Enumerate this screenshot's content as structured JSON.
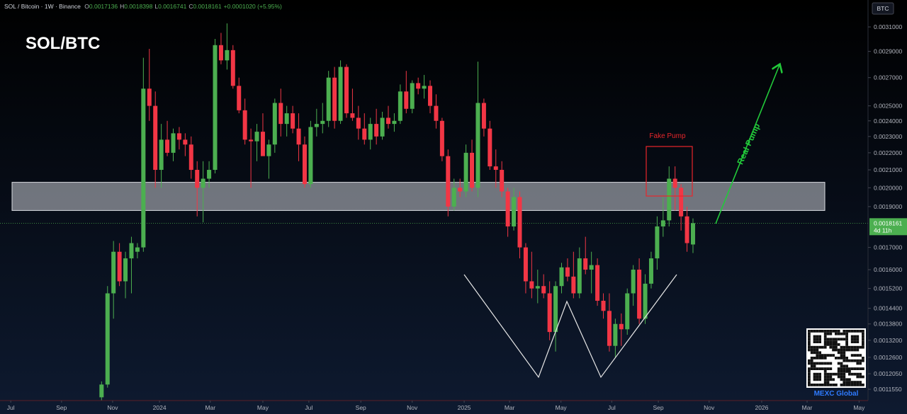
{
  "chart_data": {
    "type": "candlestick",
    "symbol": "SOL / Bitcoin · 1W · Binance",
    "header_values": [
      {
        "key": "O",
        "text": "0.0017136"
      },
      {
        "key": "H",
        "text": "0.0018398"
      },
      {
        "key": "L",
        "text": "0.0016741"
      },
      {
        "key": "C",
        "text": "0.0018161"
      }
    ],
    "change": "+0.0001020 (+5.95%)",
    "title": "SOL/BTC",
    "currency": "BTC",
    "annotations": [
      "Fake Pump",
      "Real Pump"
    ],
    "brand": "MEXC Global",
    "up_color": "#4caf50",
    "down_color": "#f23645",
    "log_scale": true,
    "ylim": [
      0.00112,
      0.003336
    ],
    "yticks": [
      {
        "value": 0.0031,
        "label": "0.0031000"
      },
      {
        "value": 0.0029,
        "label": "0.0029000"
      },
      {
        "value": 0.0027,
        "label": "0.0027000"
      },
      {
        "value": 0.0025,
        "label": "0.0025000"
      },
      {
        "value": 0.0024,
        "label": "0.0024000"
      },
      {
        "value": 0.0023,
        "label": "0.0023000"
      },
      {
        "value": 0.0022,
        "label": "0.0022000"
      },
      {
        "value": 0.0021,
        "label": "0.0021000"
      },
      {
        "value": 0.002,
        "label": "0.0020000"
      },
      {
        "value": 0.0019,
        "label": "0.0019000"
      },
      {
        "value": 0.0017,
        "label": "0.0017000"
      },
      {
        "value": 0.0016,
        "label": "0.0016000"
      },
      {
        "value": 0.00152,
        "label": "0.0015200"
      },
      {
        "value": 0.00144,
        "label": "0.0014400"
      },
      {
        "value": 0.00138,
        "label": "0.0013800"
      },
      {
        "value": 0.00132,
        "label": "0.0013200"
      },
      {
        "value": 0.00126,
        "label": "0.0012600"
      },
      {
        "value": 0.001205,
        "label": "0.0012050"
      },
      {
        "value": 0.001155,
        "label": "0.0011550"
      }
    ],
    "xlim": [
      -17.0,
      128.3
    ],
    "xticks": [
      {
        "value": -15.2,
        "label": "Jul"
      },
      {
        "value": -6.7,
        "label": "Sep"
      },
      {
        "value": 1.85,
        "label": "Nov"
      },
      {
        "value": 9.7,
        "label": "2024"
      },
      {
        "value": 18.2,
        "label": "Mar"
      },
      {
        "value": 27.0,
        "label": "May"
      },
      {
        "value": 34.7,
        "label": "Jul"
      },
      {
        "value": 43.4,
        "label": "Sep"
      },
      {
        "value": 52.0,
        "label": "Nov"
      },
      {
        "value": 60.7,
        "label": "2025"
      },
      {
        "value": 68.3,
        "label": "Mar"
      },
      {
        "value": 76.9,
        "label": "May"
      },
      {
        "value": 85.4,
        "label": "Jul"
      },
      {
        "value": 93.2,
        "label": "Sep"
      },
      {
        "value": 101.7,
        "label": "Nov"
      },
      {
        "value": 110.5,
        "label": "2026"
      },
      {
        "value": 118.1,
        "label": "Mar"
      },
      {
        "value": 126.8,
        "label": "May"
      }
    ],
    "zone": {
      "low": 0.00188,
      "high": 0.00203
    },
    "last_price": {
      "value": 0.0018161,
      "label": "0.0018161"
    },
    "countdown": "4d 11h",
    "open": [
      0.00113,
      0.00117,
      0.0015,
      0.00168,
      0.00155,
      0.00165,
      0.00168,
      0.0017,
      0.00262,
      0.0025,
      0.0021,
      0.00228,
      0.0022,
      0.00232,
      0.00228,
      0.00225,
      0.0021,
      0.002,
      0.00205,
      0.0021,
      0.00295,
      0.00283,
      0.00291,
      0.00264,
      0.00247,
      0.00228,
      0.00227,
      0.00233,
      0.00218,
      0.00225,
      0.00252,
      0.00238,
      0.00245,
      0.00235,
      0.00225,
      0.00202,
      0.00236,
      0.00238,
      0.0024,
      0.0027,
      0.0024,
      0.00278,
      0.00245,
      0.00242,
      0.00235,
      0.00228,
      0.00238,
      0.0023,
      0.00242,
      0.00238,
      0.0024,
      0.0026,
      0.00248,
      0.00266,
      0.00262,
      0.00264,
      0.0025,
      0.0024,
      0.00218,
      0.0019,
      0.002,
      0.00198,
      0.0022,
      0.002,
      0.00252,
      0.00235,
      0.00212,
      0.0021,
      0.00198,
      0.0018,
      0.00195,
      0.0017,
      0.00155,
      0.00152,
      0.00153,
      0.0015,
      0.00135,
      0.00153,
      0.00161,
      0.00157,
      0.0015,
      0.00165,
      0.0016,
      0.00162,
      0.00147,
      0.00143,
      0.0013,
      0.00138,
      0.00136,
      0.0015,
      0.0016,
      0.0014,
      0.00154,
      0.00165,
      0.0018,
      0.00183,
      0.00205,
      0.002,
      0.00185,
      0.0017136
    ],
    "high": [
      0.00118,
      0.00153,
      0.00173,
      0.00172,
      0.00168,
      0.00175,
      0.00172,
      0.00285,
      0.00292,
      0.0026,
      0.00238,
      0.0024,
      0.00235,
      0.00236,
      0.00232,
      0.0023,
      0.00215,
      0.00215,
      0.00215,
      0.003,
      0.00305,
      0.00313,
      0.00295,
      0.0027,
      0.00255,
      0.00235,
      0.00238,
      0.00245,
      0.00228,
      0.00255,
      0.00262,
      0.0025,
      0.0025,
      0.00245,
      0.0023,
      0.0024,
      0.00248,
      0.00252,
      0.00275,
      0.00278,
      0.00283,
      0.0028,
      0.00262,
      0.0025,
      0.00245,
      0.00242,
      0.00248,
      0.00246,
      0.0025,
      0.00245,
      0.00265,
      0.00275,
      0.00268,
      0.0027,
      0.00272,
      0.00268,
      0.00258,
      0.00242,
      0.00222,
      0.00205,
      0.00205,
      0.00225,
      0.00228,
      0.00282,
      0.00255,
      0.0024,
      0.00222,
      0.00215,
      0.002,
      0.002,
      0.00198,
      0.00172,
      0.00168,
      0.0016,
      0.00158,
      0.00155,
      0.00155,
      0.00163,
      0.00165,
      0.00168,
      0.0017,
      0.00175,
      0.00168,
      0.00165,
      0.0015,
      0.0015,
      0.0014,
      0.00142,
      0.00152,
      0.00162,
      0.00165,
      0.00158,
      0.00168,
      0.00185,
      0.00195,
      0.00212,
      0.00212,
      0.00202,
      0.0019,
      0.0018398
    ],
    "low": [
      0.00112,
      0.00116,
      0.0014,
      0.00153,
      0.00148,
      0.0015,
      0.00165,
      0.00168,
      0.0024,
      0.002,
      0.002,
      0.00218,
      0.00215,
      0.00222,
      0.00218,
      0.00205,
      0.00185,
      0.00182,
      0.002,
      0.00208,
      0.0028,
      0.00276,
      0.00262,
      0.00245,
      0.00225,
      0.002,
      0.00215,
      0.0022,
      0.00205,
      0.0022,
      0.0023,
      0.0023,
      0.00232,
      0.00215,
      0.002,
      0.002,
      0.0023,
      0.00232,
      0.00236,
      0.00235,
      0.00238,
      0.00242,
      0.0024,
      0.00228,
      0.00225,
      0.00222,
      0.00225,
      0.00228,
      0.00235,
      0.00233,
      0.00238,
      0.00245,
      0.00245,
      0.00258,
      0.00255,
      0.00245,
      0.00235,
      0.00215,
      0.00185,
      0.00188,
      0.00195,
      0.00195,
      0.00198,
      0.00195,
      0.0023,
      0.0021,
      0.002,
      0.00195,
      0.00175,
      0.00178,
      0.00165,
      0.0015,
      0.00148,
      0.00146,
      0.00148,
      0.00132,
      0.00128,
      0.0015,
      0.00155,
      0.00148,
      0.00148,
      0.00158,
      0.0015,
      0.00145,
      0.0014,
      0.00128,
      0.00126,
      0.0013,
      0.00134,
      0.00145,
      0.00138,
      0.00138,
      0.00152,
      0.0016,
      0.00175,
      0.0018,
      0.00188,
      0.00178,
      0.00168,
      0.0016741
    ],
    "close": [
      0.00117,
      0.0015,
      0.00168,
      0.00155,
      0.00165,
      0.00172,
      0.0017,
      0.00262,
      0.0025,
      0.0021,
      0.00228,
      0.0022,
      0.00232,
      0.00228,
      0.00225,
      0.0021,
      0.002,
      0.00205,
      0.0021,
      0.00295,
      0.00283,
      0.00291,
      0.00264,
      0.00247,
      0.00228,
      0.00227,
      0.00233,
      0.00218,
      0.00225,
      0.00252,
      0.00238,
      0.00245,
      0.00235,
      0.00225,
      0.00202,
      0.00236,
      0.00238,
      0.0024,
      0.0027,
      0.0024,
      0.00278,
      0.00245,
      0.00242,
      0.00235,
      0.00228,
      0.00238,
      0.0023,
      0.00242,
      0.00238,
      0.0024,
      0.0026,
      0.00248,
      0.00266,
      0.00262,
      0.00264,
      0.0025,
      0.0024,
      0.00218,
      0.0019,
      0.002,
      0.00198,
      0.0022,
      0.002,
      0.00252,
      0.00235,
      0.00212,
      0.0021,
      0.00198,
      0.0018,
      0.00195,
      0.0017,
      0.00155,
      0.00152,
      0.00153,
      0.0015,
      0.00135,
      0.00153,
      0.00161,
      0.00157,
      0.0015,
      0.00165,
      0.0016,
      0.00162,
      0.00147,
      0.00143,
      0.0013,
      0.00138,
      0.00136,
      0.0015,
      0.0016,
      0.0014,
      0.00154,
      0.00165,
      0.0018,
      0.00183,
      0.00205,
      0.002,
      0.00185,
      0.00172,
      0.0018161
    ]
  }
}
